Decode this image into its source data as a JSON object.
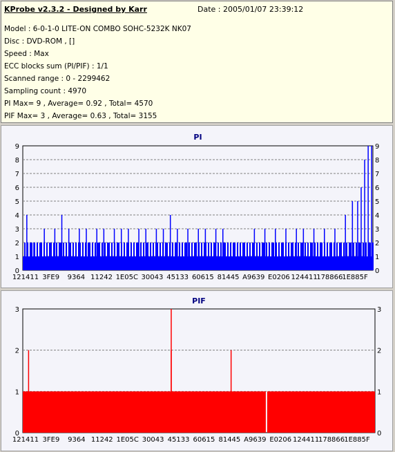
{
  "app_title": "KProbe v2.3.2 - Designed by Karr",
  "date": "Date : 2005/01/07 23:39:12",
  "info_lines": [
    "Model : 6-0-1-0 LITE-ON COMBO SOHC-5232K NK07",
    "Disc : DVD-ROM ,  []",
    "Speed : Max",
    "ECC blocks sum (PI/PIF) : 1/1",
    "Scanned range : 0 - 2299462",
    "Sampling count : 4970",
    "PI Max= 9 , Average= 0.92 , Total= 4570",
    "PIF Max= 3 , Average= 0.63 , Total= 3155"
  ],
  "colors": {
    "pi": "#0000ff",
    "pif": "#ff0000",
    "grid": "#808080",
    "plot_bg": "#f4f4fa"
  },
  "chart_data": [
    {
      "type": "bar",
      "title": "PI",
      "xlabel": "",
      "ylabel": "",
      "ylim": [
        0,
        9
      ],
      "grid": true,
      "x_tick_labels": [
        "121411",
        "3FE9",
        "9364",
        "11242",
        "1E05C",
        "30043",
        "45133",
        "60615",
        "81445",
        "A9639",
        "E0206",
        "124411",
        "178866",
        "1E885F"
      ],
      "y_ticks": [
        0,
        1,
        2,
        3,
        4,
        5,
        6,
        7,
        8,
        9
      ],
      "baseline_range": [
        1,
        2
      ],
      "spikes": [
        {
          "x": 0.01,
          "value": 4
        },
        {
          "x": 0.03,
          "value": 2
        },
        {
          "x": 0.06,
          "value": 3
        },
        {
          "x": 0.09,
          "value": 3
        },
        {
          "x": 0.11,
          "value": 4
        },
        {
          "x": 0.13,
          "value": 3
        },
        {
          "x": 0.16,
          "value": 3
        },
        {
          "x": 0.18,
          "value": 3
        },
        {
          "x": 0.21,
          "value": 3
        },
        {
          "x": 0.23,
          "value": 3
        },
        {
          "x": 0.26,
          "value": 3
        },
        {
          "x": 0.28,
          "value": 3
        },
        {
          "x": 0.3,
          "value": 3
        },
        {
          "x": 0.33,
          "value": 3
        },
        {
          "x": 0.35,
          "value": 3
        },
        {
          "x": 0.38,
          "value": 3
        },
        {
          "x": 0.4,
          "value": 3
        },
        {
          "x": 0.42,
          "value": 4
        },
        {
          "x": 0.44,
          "value": 3
        },
        {
          "x": 0.47,
          "value": 3
        },
        {
          "x": 0.5,
          "value": 3
        },
        {
          "x": 0.52,
          "value": 3
        },
        {
          "x": 0.55,
          "value": 3
        },
        {
          "x": 0.57,
          "value": 3
        },
        {
          "x": 0.6,
          "value": 2
        },
        {
          "x": 0.63,
          "value": 2
        },
        {
          "x": 0.66,
          "value": 3
        },
        {
          "x": 0.69,
          "value": 3
        },
        {
          "x": 0.72,
          "value": 3
        },
        {
          "x": 0.75,
          "value": 3
        },
        {
          "x": 0.78,
          "value": 3
        },
        {
          "x": 0.8,
          "value": 3
        },
        {
          "x": 0.83,
          "value": 3
        },
        {
          "x": 0.86,
          "value": 3
        },
        {
          "x": 0.89,
          "value": 3
        },
        {
          "x": 0.92,
          "value": 4
        },
        {
          "x": 0.94,
          "value": 5
        },
        {
          "x": 0.955,
          "value": 5
        },
        {
          "x": 0.965,
          "value": 6
        },
        {
          "x": 0.975,
          "value": 8
        },
        {
          "x": 0.985,
          "value": 9
        },
        {
          "x": 0.995,
          "value": 9
        }
      ]
    },
    {
      "type": "bar",
      "title": "PIF",
      "xlabel": "",
      "ylabel": "",
      "ylim": [
        0,
        3
      ],
      "grid": true,
      "x_tick_labels": [
        "121411",
        "3FE9",
        "9364",
        "11242",
        "1E05C",
        "30043",
        "45133",
        "60615",
        "81445",
        "A9639",
        "E0206",
        "124411",
        "178866",
        "1E885F"
      ],
      "y_ticks": [
        0,
        1,
        2,
        3
      ],
      "baseline_value": 1,
      "spikes": [
        {
          "x": 0.015,
          "value": 2
        },
        {
          "x": 0.42,
          "value": 3
        },
        {
          "x": 0.42,
          "value": 2
        },
        {
          "x": 0.59,
          "value": 2
        }
      ],
      "gap": {
        "x": 0.69
      }
    }
  ]
}
